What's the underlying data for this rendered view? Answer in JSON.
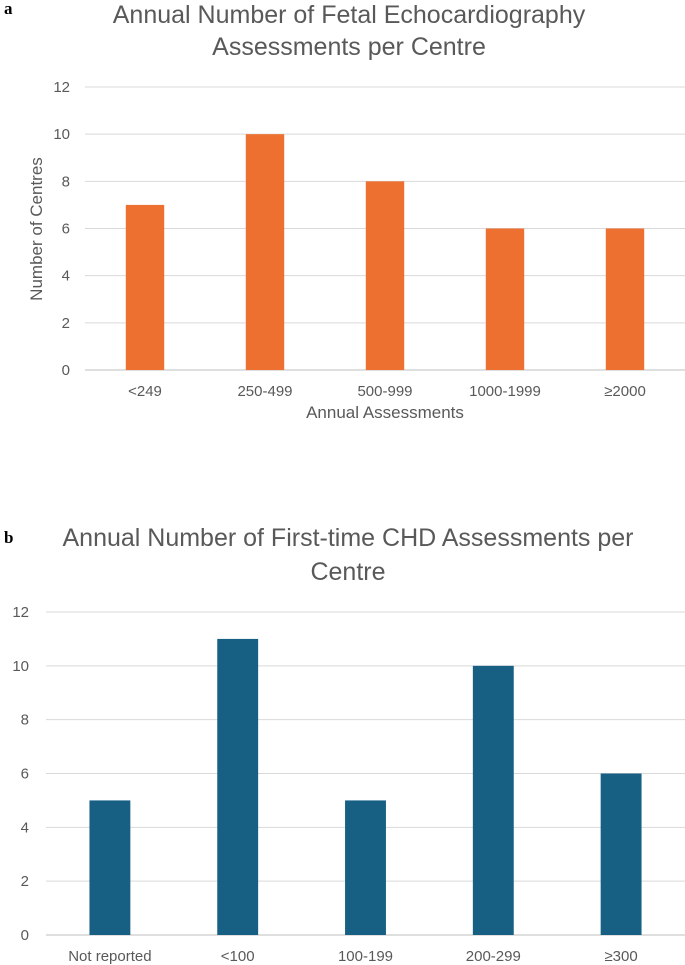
{
  "chart_data": [
    {
      "panel_label": "a",
      "type": "bar",
      "title_lines": [
        "Annual Number of Fetal Echocardiography",
        "Assessments per Centre"
      ],
      "xlabel": "Annual Assessments",
      "ylabel": "Number of Centres",
      "categories": [
        "<249",
        "250-499",
        "500-999",
        "1000-1999",
        "≥2000"
      ],
      "values": [
        7,
        10,
        8,
        6,
        6
      ],
      "ylim": [
        0,
        12
      ],
      "yticks": [
        "0",
        "2",
        "4",
        "6",
        "8",
        "10",
        "12"
      ],
      "grid": true,
      "bar_color": "#ED7031"
    },
    {
      "panel_label": "b",
      "type": "bar",
      "title_lines": [
        "Annual Number of First-time CHD Assessments per",
        "Centre"
      ],
      "xlabel": "",
      "ylabel": "",
      "categories": [
        "Not reported",
        "<100",
        "100-199",
        "200-299",
        "≥300"
      ],
      "values": [
        5,
        11,
        5,
        10,
        6
      ],
      "ylim": [
        0,
        12
      ],
      "yticks": [
        "0",
        "2",
        "4",
        "6",
        "8",
        "10",
        "12"
      ],
      "grid": true,
      "bar_color": "#176084"
    }
  ]
}
